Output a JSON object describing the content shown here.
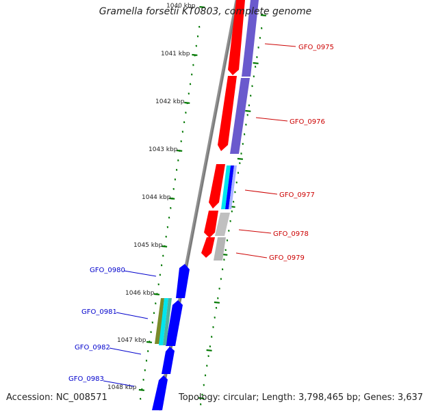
{
  "title": "Gramella forsetii KT0803, complete genome",
  "accession": "Accession: NC_008571",
  "summary": "Topology: circular; Length: 3,798,465 bp; Genes: 3,637",
  "ruler": {
    "labels": [
      "1040 kbp",
      "1041 kbp",
      "1042 kbp",
      "1043 kbp",
      "1044 kbp",
      "1045 kbp",
      "1046 kbp",
      "1047 kbp",
      "1048 kbp"
    ]
  },
  "genes": {
    "forward": [
      "GFO_0975",
      "GFO_0976",
      "GFO_0977",
      "GFO_0978",
      "GFO_0979"
    ],
    "reverse": [
      "GFO_0980",
      "GFO_0981",
      "GFO_0982",
      "GFO_0983"
    ]
  },
  "colors": {
    "forward_label": "#cc0000",
    "reverse_label": "#0000cc",
    "forward_cds": "#ff0000",
    "reverse_cds": "#0000ff",
    "backbone": "#888888",
    "ruler": "#007700",
    "purple_track": "#6a5acd",
    "cyan_track": "#00e5ee",
    "gray_track": "#c0c0c0",
    "olive_track": "#7a8b2a"
  }
}
